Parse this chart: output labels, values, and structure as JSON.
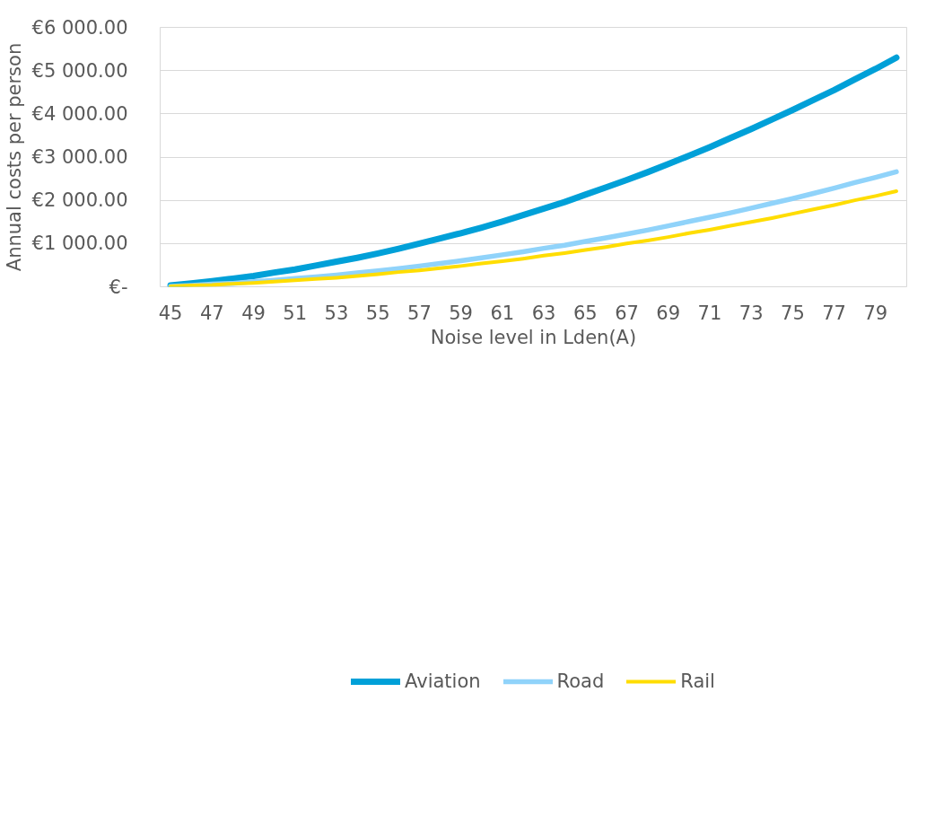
{
  "chart_data": {
    "type": "line",
    "xlabel": "Noise level in Lden(A)",
    "ylabel": "Annual costs per person",
    "categories": [
      "45",
      null,
      "47",
      null,
      "49",
      null,
      "51",
      null,
      "53",
      null,
      "55",
      null,
      "57",
      null,
      "59",
      null,
      "61",
      null,
      "63",
      null,
      "65",
      null,
      "67",
      null,
      "69",
      null,
      "71",
      null,
      "73",
      null,
      "75",
      null,
      "77",
      null,
      "79",
      null
    ],
    "ylim": [
      0,
      6000
    ],
    "yticks": [
      {
        "value": 0,
        "label": "€-"
      },
      {
        "value": 1000,
        "label": "€1 000.00"
      },
      {
        "value": 2000,
        "label": "€2 000.00"
      },
      {
        "value": 3000,
        "label": "€3 000.00"
      },
      {
        "value": 4000,
        "label": "€4 000.00"
      },
      {
        "value": 5000,
        "label": "€5 000.00"
      },
      {
        "value": 6000,
        "label": "€6 000.00"
      }
    ],
    "grid": "y",
    "legend": "bottom",
    "marker": "none",
    "line_style": "solid",
    "series": [
      {
        "name": "Aviation",
        "color": "#00a0d8",
        "values": [
          30,
          80,
          130,
          190,
          250,
          330,
          400,
          490,
          580,
          670,
          770,
          880,
          1000,
          1120,
          1240,
          1370,
          1510,
          1660,
          1810,
          1960,
          2130,
          2300,
          2470,
          2650,
          2840,
          3030,
          3230,
          3440,
          3650,
          3870,
          4090,
          4320,
          4550,
          4800,
          5040,
          5300
        ]
      },
      {
        "name": "Road",
        "color": "#90d3fa",
        "values": [
          10,
          30,
          60,
          80,
          120,
          150,
          190,
          230,
          270,
          320,
          370,
          420,
          480,
          540,
          600,
          670,
          740,
          810,
          890,
          960,
          1050,
          1130,
          1220,
          1310,
          1410,
          1510,
          1610,
          1710,
          1820,
          1930,
          2040,
          2160,
          2280,
          2410,
          2530,
          2660
        ]
      },
      {
        "name": "Rail",
        "color": "#ffdd00",
        "values": [
          10,
          30,
          40,
          70,
          90,
          120,
          150,
          180,
          210,
          250,
          290,
          340,
          380,
          430,
          480,
          540,
          590,
          650,
          720,
          780,
          850,
          920,
          1000,
          1070,
          1150,
          1240,
          1320,
          1410,
          1500,
          1590,
          1690,
          1790,
          1890,
          2000,
          2100,
          2210
        ]
      }
    ]
  }
}
